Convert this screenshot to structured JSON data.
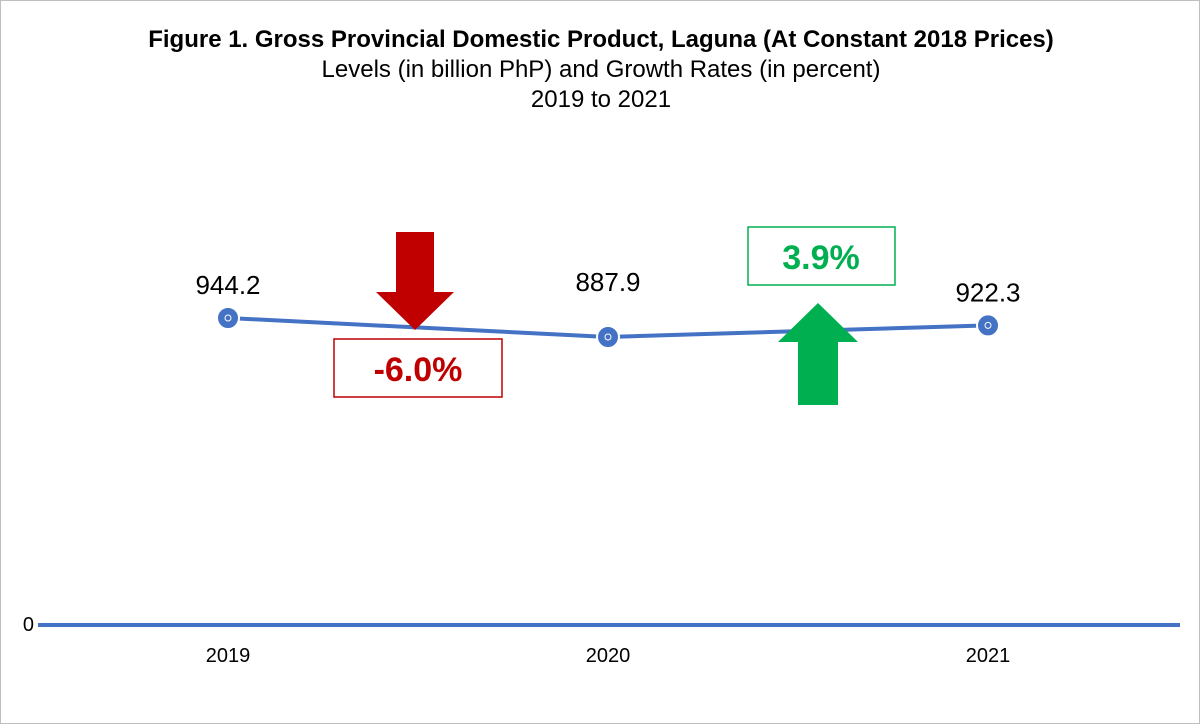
{
  "chart_data": {
    "type": "line",
    "title": "Figure 1. Gross Provincial Domestic Product, Laguna (At Constant 2018 Prices)",
    "subtitle": "Levels (in billion PhP) and Growth Rates (in percent)",
    "period": "2019 to 2021",
    "categories": [
      "2019",
      "2020",
      "2021"
    ],
    "values": [
      944.2,
      887.9,
      922.3
    ],
    "data_labels": [
      "944.2",
      "887.9",
      "922.3"
    ],
    "y_tick_labels": [
      "0"
    ],
    "ylim": [
      0,
      944.2
    ],
    "grid": false,
    "series_color": "#4472c4",
    "annotations": [
      {
        "text": "-6.0%",
        "direction": "down",
        "color": "#c00000",
        "between": [
          "2019",
          "2020"
        ]
      },
      {
        "text": "3.9%",
        "direction": "up",
        "color": "#00b050",
        "between": [
          "2020",
          "2021"
        ]
      }
    ]
  }
}
